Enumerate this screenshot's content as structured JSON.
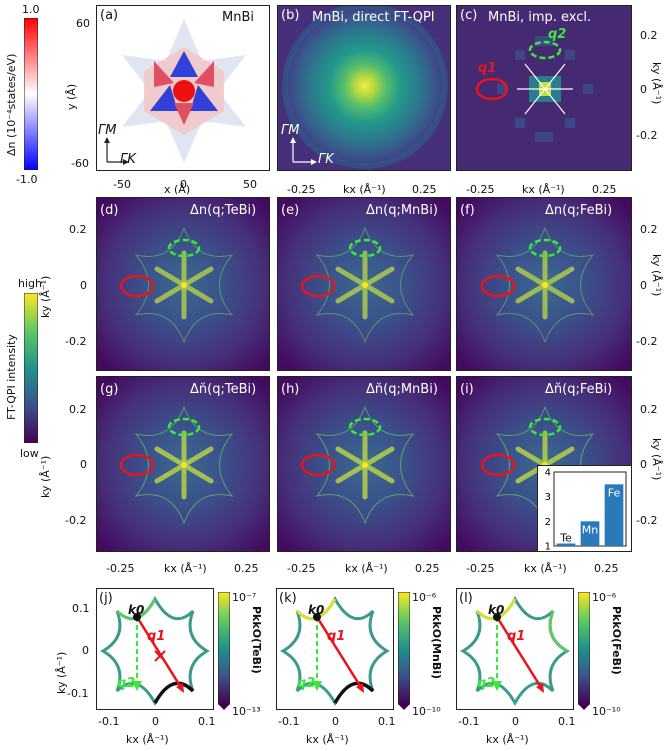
{
  "colorbars": {
    "dn": {
      "label": "Δn (10⁻⁴states/eV)",
      "max": "1.0",
      "min": "-1.0"
    },
    "ftqpi": {
      "label": "FT-QPI intensity",
      "max": "high",
      "min": "low"
    }
  },
  "row1": {
    "a": {
      "tag": "(a)",
      "title": "MnBi",
      "ylabel": "y (Å)",
      "xlabel": "x (Å)",
      "xticks": [
        "-50",
        "0",
        "50"
      ],
      "yticks": [
        "60",
        "-60"
      ],
      "gm": "ΓM",
      "gk": "ΓK"
    },
    "b": {
      "tag": "(b)",
      "title": "MnBi, direct FT-QPI",
      "xticks": [
        "-0.25",
        "0.25"
      ],
      "gm": "ΓM",
      "gk": "ΓK",
      "xlabel": "kx (Å⁻¹)"
    },
    "c": {
      "tag": "(c)",
      "title": "MnBi, imp. excl.",
      "q1": "q1",
      "q2": "q2",
      "xticks": [
        "-0.25",
        "0.25"
      ],
      "yticks": [
        "0.2",
        "0",
        "-0.2"
      ],
      "xlabel": "kx (Å⁻¹)",
      "ylabel": "ky (Å⁻¹)"
    }
  },
  "row2": {
    "d": {
      "tag": "(d)",
      "title": "Δn(q;TeBi)"
    },
    "e": {
      "tag": "(e)",
      "title": "Δn(q;MnBi)"
    },
    "f": {
      "tag": "(f)",
      "title": "Δn(q;FeBi)"
    },
    "ylabel": "ky (Å⁻¹)",
    "yticks": [
      "0.2",
      "0",
      "-0.2"
    ]
  },
  "row3": {
    "g": {
      "tag": "(g)",
      "title": "Δn̆(q;TeBi)"
    },
    "h": {
      "tag": "(h)",
      "title": "Δn̆(q;MnBi)"
    },
    "i": {
      "tag": "(i)",
      "title": "Δn̆(q;FeBi)"
    },
    "ylabel": "ky (Å⁻¹)",
    "yticks": [
      "0.2",
      "0",
      "-0.2"
    ],
    "xticks": [
      "-0.25",
      "0.25"
    ],
    "xlabel": "kx (Å⁻¹)"
  },
  "chart_data": {
    "type": "bar",
    "categories": [
      "Te",
      "Mn",
      "Fe"
    ],
    "values": [
      1.1,
      2.0,
      3.5
    ],
    "ylim": [
      1,
      4
    ],
    "yticks": [
      "1",
      "2",
      "3",
      "4"
    ]
  },
  "row4": {
    "j": {
      "tag": "(j)",
      "cb_max": "10⁻⁷",
      "cb_min": "10⁻¹³",
      "cb_label": "PkkO(TeBi)"
    },
    "k": {
      "tag": "(k)",
      "cb_max": "10⁻⁶",
      "cb_min": "10⁻¹⁰",
      "cb_label": "PkkO(MnBi)"
    },
    "l": {
      "tag": "(l)",
      "cb_max": "10⁻⁶",
      "cb_min": "10⁻¹⁰",
      "cb_label": "PkkO(FeBi)"
    },
    "k0": "k0",
    "q1": "q1",
    "q2": "q2",
    "xticks": [
      "-0.1",
      "0",
      "0.1"
    ],
    "yticks": [
      "0.1",
      "0",
      "-0.1"
    ],
    "xlabel": "kx (Å⁻¹)",
    "ylabel": "ky (Å⁻¹)"
  }
}
